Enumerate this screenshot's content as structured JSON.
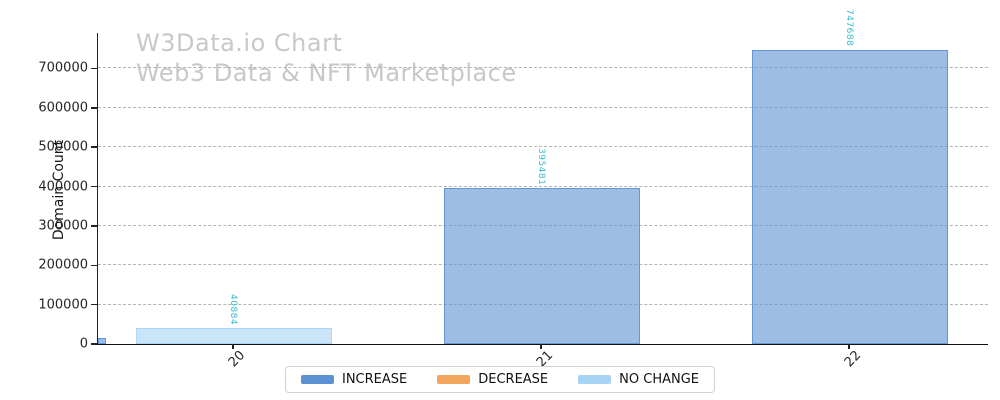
{
  "chart_data": {
    "type": "bar",
    "title": "W3Data.io Chart",
    "subtitle": "Web3 Data & NFT Marketplace",
    "watermark_color": "#c8c8c8",
    "ylabel": "Domain Count",
    "xlabel": "",
    "categories": [
      "20",
      "21",
      "22"
    ],
    "bars": [
      {
        "category": "20",
        "value": 40884,
        "label": "40884",
        "series": "NO CHANGE"
      },
      {
        "category": "21",
        "value": 395481,
        "label": "395481",
        "series": "INCREASE"
      },
      {
        "category": "22",
        "value": 747688,
        "label": "747688",
        "series": "INCREASE"
      }
    ],
    "partial_edge_bar": {
      "series": "INCREASE",
      "approx_value": 15000,
      "note": "small bar clipped at left axis"
    },
    "yticks": [
      0,
      100000,
      200000,
      300000,
      400000,
      500000,
      600000,
      700000
    ],
    "ylim": [
      0,
      790000
    ],
    "grid": {
      "axis": "y",
      "style": "dashed",
      "on": true,
      "color": "#b5b5b5"
    },
    "value_label_color": "#3bbcca",
    "legend": {
      "position": "bottom-center",
      "entries": [
        {
          "label": "INCREASE",
          "color": "#5b91d2"
        },
        {
          "label": "DECREASE",
          "color": "#f2a65e"
        },
        {
          "label": "NO CHANGE",
          "color": "#a7d4f4"
        }
      ]
    }
  }
}
